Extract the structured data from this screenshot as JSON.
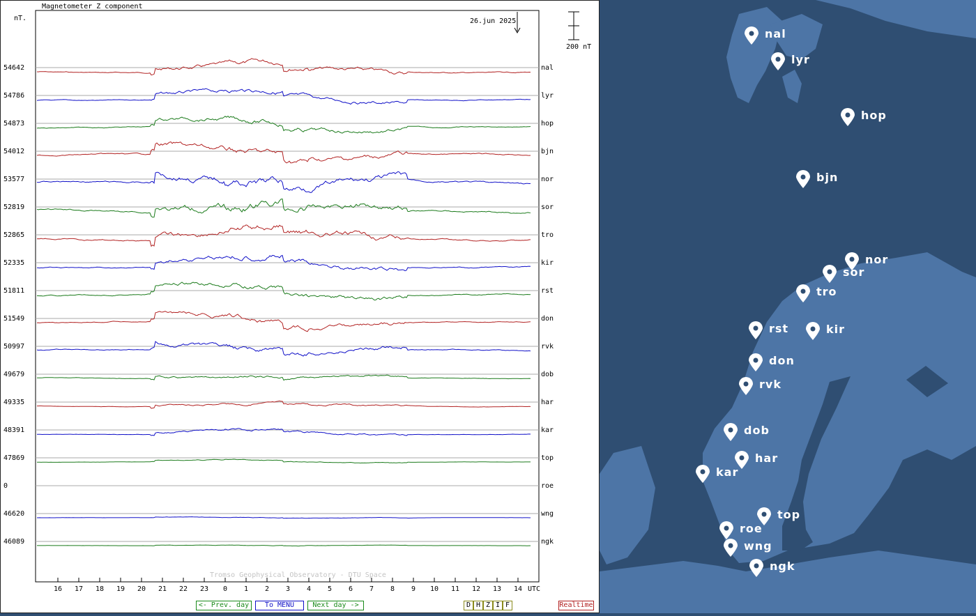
{
  "plot": {
    "title": "Magnetometer Z component",
    "unit_label": "nT.",
    "date_label": "26.jun 2025",
    "scale_label": "200 nT",
    "credit": "Tromso Geophysical Observatory - DTU Space",
    "utc_label": "UTC",
    "hour_ticks": [
      "16",
      "17",
      "18",
      "19",
      "20",
      "21",
      "22",
      "23",
      "0",
      "1",
      "2",
      "3",
      "4",
      "5",
      "6",
      "7",
      "8",
      "9",
      "10",
      "11",
      "12",
      "13",
      "14"
    ]
  },
  "stations": [
    {
      "code": "nal",
      "baseline": "54642",
      "color": "#b22222",
      "activity": 0.55
    },
    {
      "code": "lyr",
      "baseline": "54786",
      "color": "#1010c8",
      "activity": 0.5
    },
    {
      "code": "hop",
      "baseline": "54873",
      "color": "#1a7a1a",
      "activity": 0.55
    },
    {
      "code": "bjn",
      "baseline": "54012",
      "color": "#b22222",
      "activity": 0.7
    },
    {
      "code": "nor",
      "baseline": "53577",
      "color": "#1010c8",
      "activity": 0.9
    },
    {
      "code": "sor",
      "baseline": "52819",
      "color": "#1a7a1a",
      "activity": 0.9
    },
    {
      "code": "tro",
      "baseline": "52865",
      "color": "#b22222",
      "activity": 0.8
    },
    {
      "code": "kir",
      "baseline": "52335",
      "color": "#1010c8",
      "activity": 0.65
    },
    {
      "code": "rst",
      "baseline": "51811",
      "color": "#1a7a1a",
      "activity": 0.6
    },
    {
      "code": "don",
      "baseline": "51549",
      "color": "#b22222",
      "activity": 0.55
    },
    {
      "code": "rvk",
      "baseline": "50997",
      "color": "#1010c8",
      "activity": 0.55
    },
    {
      "code": "dob",
      "baseline": "49679",
      "color": "#1a7a1a",
      "activity": 0.3
    },
    {
      "code": "har",
      "baseline": "49335",
      "color": "#b22222",
      "activity": 0.25
    },
    {
      "code": "kar",
      "baseline": "48391",
      "color": "#1010c8",
      "activity": 0.25
    },
    {
      "code": "top",
      "baseline": "47869",
      "color": "#1a7a1a",
      "activity": 0.12
    },
    {
      "code": "roe",
      "baseline": "0",
      "color": "#b22222",
      "activity": 0
    },
    {
      "code": "wng",
      "baseline": "46620",
      "color": "#1010c8",
      "activity": 0.06
    },
    {
      "code": "ngk",
      "baseline": "46089",
      "color": "#1a7a1a",
      "activity": 0.06
    }
  ],
  "buttons": {
    "prev_day": "<- Prev. day",
    "menu": "To MENU",
    "next_day": "Next day ->",
    "components": [
      "D",
      "H",
      "Z",
      "I",
      "F"
    ],
    "realtime": "Realtime"
  },
  "colors": {
    "prev_border": "#1a8a1a",
    "menu_border": "#1010c8",
    "comp_border": "#8a8a1a",
    "realtime_border": "#b22222",
    "sea": "#2f4e72",
    "land": "#4d75a6"
  },
  "map_pins": [
    {
      "code": "nal",
      "label": "nal"
    },
    {
      "code": "lyr",
      "label": "lyr"
    },
    {
      "code": "hop",
      "label": "hop"
    },
    {
      "code": "bjn",
      "label": "bjn"
    },
    {
      "code": "nor",
      "label": "nor"
    },
    {
      "code": "sor",
      "label": "sor"
    },
    {
      "code": "tro",
      "label": "tro"
    },
    {
      "code": "rst",
      "label": "rst"
    },
    {
      "code": "kir",
      "label": "kir"
    },
    {
      "code": "don",
      "label": "don"
    },
    {
      "code": "rvk",
      "label": "rvk"
    },
    {
      "code": "dob",
      "label": "dob"
    },
    {
      "code": "har",
      "label": "har"
    },
    {
      "code": "kar",
      "label": "kar"
    },
    {
      "code": "top",
      "label": "top"
    },
    {
      "code": "roe",
      "label": "roe"
    },
    {
      "code": "wng",
      "label": "wng"
    },
    {
      "code": "ngk",
      "label": "ngk"
    }
  ]
}
